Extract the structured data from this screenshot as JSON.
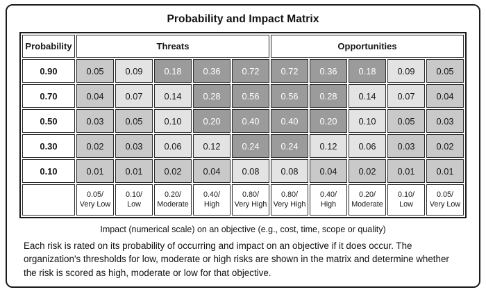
{
  "title": "Probability and Impact Matrix",
  "colors": {
    "high_risk_cell": "#9b9b9b",
    "low_risk_cell": "#c9c9c9",
    "moderate_risk_cell": "#e3e3e3",
    "high_cell_text": "#ffffff",
    "border": "#1a1a1a"
  },
  "table": {
    "header": {
      "probability": "Probability",
      "threats": "Threats",
      "opportunities": "Opportunities"
    },
    "rows": [
      {
        "probability": "0.90",
        "cells": [
          {
            "value": "0.05",
            "level": "low"
          },
          {
            "value": "0.09",
            "level": "moderate"
          },
          {
            "value": "0.18",
            "level": "high"
          },
          {
            "value": "0.36",
            "level": "high"
          },
          {
            "value": "0.72",
            "level": "high"
          },
          {
            "value": "0.72",
            "level": "high"
          },
          {
            "value": "0.36",
            "level": "high"
          },
          {
            "value": "0.18",
            "level": "high"
          },
          {
            "value": "0.09",
            "level": "moderate"
          },
          {
            "value": "0.05",
            "level": "low"
          }
        ]
      },
      {
        "probability": "0.70",
        "cells": [
          {
            "value": "0.04",
            "level": "low"
          },
          {
            "value": "0.07",
            "level": "moderate"
          },
          {
            "value": "0.14",
            "level": "moderate"
          },
          {
            "value": "0.28",
            "level": "high"
          },
          {
            "value": "0.56",
            "level": "high"
          },
          {
            "value": "0.56",
            "level": "high"
          },
          {
            "value": "0.28",
            "level": "high"
          },
          {
            "value": "0.14",
            "level": "moderate"
          },
          {
            "value": "0.07",
            "level": "moderate"
          },
          {
            "value": "0.04",
            "level": "low"
          }
        ]
      },
      {
        "probability": "0.50",
        "cells": [
          {
            "value": "0.03",
            "level": "low"
          },
          {
            "value": "0.05",
            "level": "low"
          },
          {
            "value": "0.10",
            "level": "moderate"
          },
          {
            "value": "0.20",
            "level": "high"
          },
          {
            "value": "0.40",
            "level": "high"
          },
          {
            "value": "0.40",
            "level": "high"
          },
          {
            "value": "0.20",
            "level": "high"
          },
          {
            "value": "0.10",
            "level": "moderate"
          },
          {
            "value": "0.05",
            "level": "low"
          },
          {
            "value": "0.03",
            "level": "low"
          }
        ]
      },
      {
        "probability": "0.30",
        "cells": [
          {
            "value": "0.02",
            "level": "low"
          },
          {
            "value": "0.03",
            "level": "low"
          },
          {
            "value": "0.06",
            "level": "moderate"
          },
          {
            "value": "0.12",
            "level": "moderate"
          },
          {
            "value": "0.24",
            "level": "high"
          },
          {
            "value": "0.24",
            "level": "high"
          },
          {
            "value": "0.12",
            "level": "moderate"
          },
          {
            "value": "0.06",
            "level": "moderate"
          },
          {
            "value": "0.03",
            "level": "low"
          },
          {
            "value": "0.02",
            "level": "low"
          }
        ]
      },
      {
        "probability": "0.10",
        "cells": [
          {
            "value": "0.01",
            "level": "low"
          },
          {
            "value": "0.01",
            "level": "low"
          },
          {
            "value": "0.02",
            "level": "low"
          },
          {
            "value": "0.04",
            "level": "low"
          },
          {
            "value": "0.08",
            "level": "moderate"
          },
          {
            "value": "0.08",
            "level": "moderate"
          },
          {
            "value": "0.04",
            "level": "low"
          },
          {
            "value": "0.02",
            "level": "low"
          },
          {
            "value": "0.01",
            "level": "low"
          },
          {
            "value": "0.01",
            "level": "low"
          }
        ]
      }
    ],
    "impact_scale": [
      {
        "score": "0.05/",
        "label": "Very Low"
      },
      {
        "score": "0.10/",
        "label": "Low"
      },
      {
        "score": "0.20/",
        "label": "Moderate"
      },
      {
        "score": "0.40/",
        "label": "High"
      },
      {
        "score": "0.80/",
        "label": "Very High"
      },
      {
        "score": "0.80/",
        "label": "Very High"
      },
      {
        "score": "0.40/",
        "label": "High"
      },
      {
        "score": "0.20/",
        "label": "Moderate"
      },
      {
        "score": "0.10/",
        "label": "Low"
      },
      {
        "score": "0.05/",
        "label": "Very Low"
      }
    ]
  },
  "caption": "Impact (numerical scale) on an objective  (e.g., cost, time, scope or quality)",
  "description": "Each risk is rated on its probability of occurring and impact on an objective if it does occur. The organization's thresholds for low, moderate or high risks are shown in the matrix and determine whether the risk is scored as high, moderate or low for that objective.",
  "chart_data": {
    "type": "heatmap",
    "title": "Probability and Impact Matrix",
    "probabilities": [
      0.9,
      0.7,
      0.5,
      0.3,
      0.1
    ],
    "threat_impact_scale": [
      0.05,
      0.1,
      0.2,
      0.4,
      0.8
    ],
    "threat_impact_labels": [
      "Very Low",
      "Low",
      "Moderate",
      "High",
      "Very High"
    ],
    "opportunity_impact_scale": [
      0.8,
      0.4,
      0.2,
      0.1,
      0.05
    ],
    "opportunity_impact_labels": [
      "Very High",
      "High",
      "Moderate",
      "Low",
      "Very Low"
    ],
    "threat_scores": [
      [
        0.05,
        0.09,
        0.18,
        0.36,
        0.72
      ],
      [
        0.04,
        0.07,
        0.14,
        0.28,
        0.56
      ],
      [
        0.03,
        0.05,
        0.1,
        0.2,
        0.4
      ],
      [
        0.02,
        0.03,
        0.06,
        0.12,
        0.24
      ],
      [
        0.01,
        0.01,
        0.02,
        0.04,
        0.08
      ]
    ],
    "opportunity_scores": [
      [
        0.72,
        0.36,
        0.18,
        0.09,
        0.05
      ],
      [
        0.56,
        0.28,
        0.14,
        0.07,
        0.04
      ],
      [
        0.4,
        0.2,
        0.1,
        0.05,
        0.03
      ],
      [
        0.24,
        0.12,
        0.06,
        0.03,
        0.02
      ],
      [
        0.08,
        0.04,
        0.02,
        0.01,
        0.01
      ]
    ],
    "shading_legend": {
      "dark_gray": "high risk",
      "light_gray": "moderate risk",
      "medium_gray": "low risk"
    },
    "xlabel": "Impact (numerical scale) on an objective  (e.g., cost, time, scope or quality)",
    "ylabel": "Probability"
  }
}
